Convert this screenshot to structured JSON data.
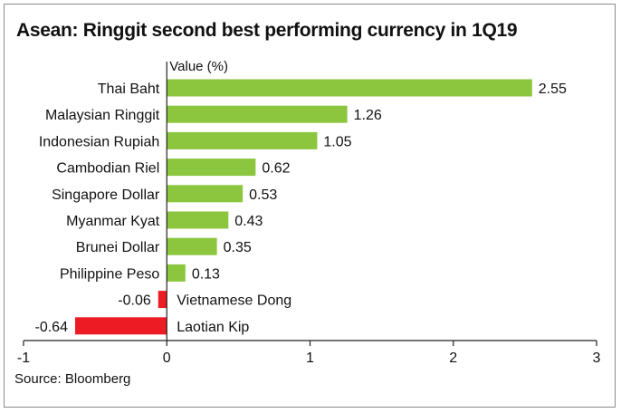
{
  "header": {
    "title": "Asean: Ringgit second best performing currency in 1Q19"
  },
  "footer": {
    "source": "Source: Bloomberg"
  },
  "colors": {
    "positive": "#8cc63f",
    "negative": "#ed1c24",
    "axis": "#222222"
  },
  "chart_data": {
    "type": "bar",
    "orientation": "horizontal",
    "title": "Asean: Ringgit second best performing currency in 1Q19",
    "xlabel": "Value (%)",
    "ylabel": "",
    "xlim": [
      -1,
      3
    ],
    "xticks": [
      -1,
      0,
      1,
      2,
      3
    ],
    "grid": false,
    "legend": "none",
    "categories": [
      "Thai Baht",
      "Malaysian Ringgit",
      "Indonesian Rupiah",
      "Cambodian Riel",
      "Singapore Dollar",
      "Myanmar Kyat",
      "Brunei Dollar",
      "Philippine Peso",
      "Vietnamese Dong",
      "Laotian Kip"
    ],
    "values": [
      2.55,
      1.26,
      1.05,
      0.62,
      0.53,
      0.43,
      0.35,
      0.13,
      -0.06,
      -0.64
    ],
    "value_labels": [
      "2.55",
      "1.26",
      "1.05",
      "0.62",
      "0.53",
      "0.43",
      "0.35",
      "0.13",
      "-0.06",
      "-0.64"
    ],
    "tick_labels": [
      "-1",
      "0",
      "1",
      "2",
      "3"
    ]
  }
}
